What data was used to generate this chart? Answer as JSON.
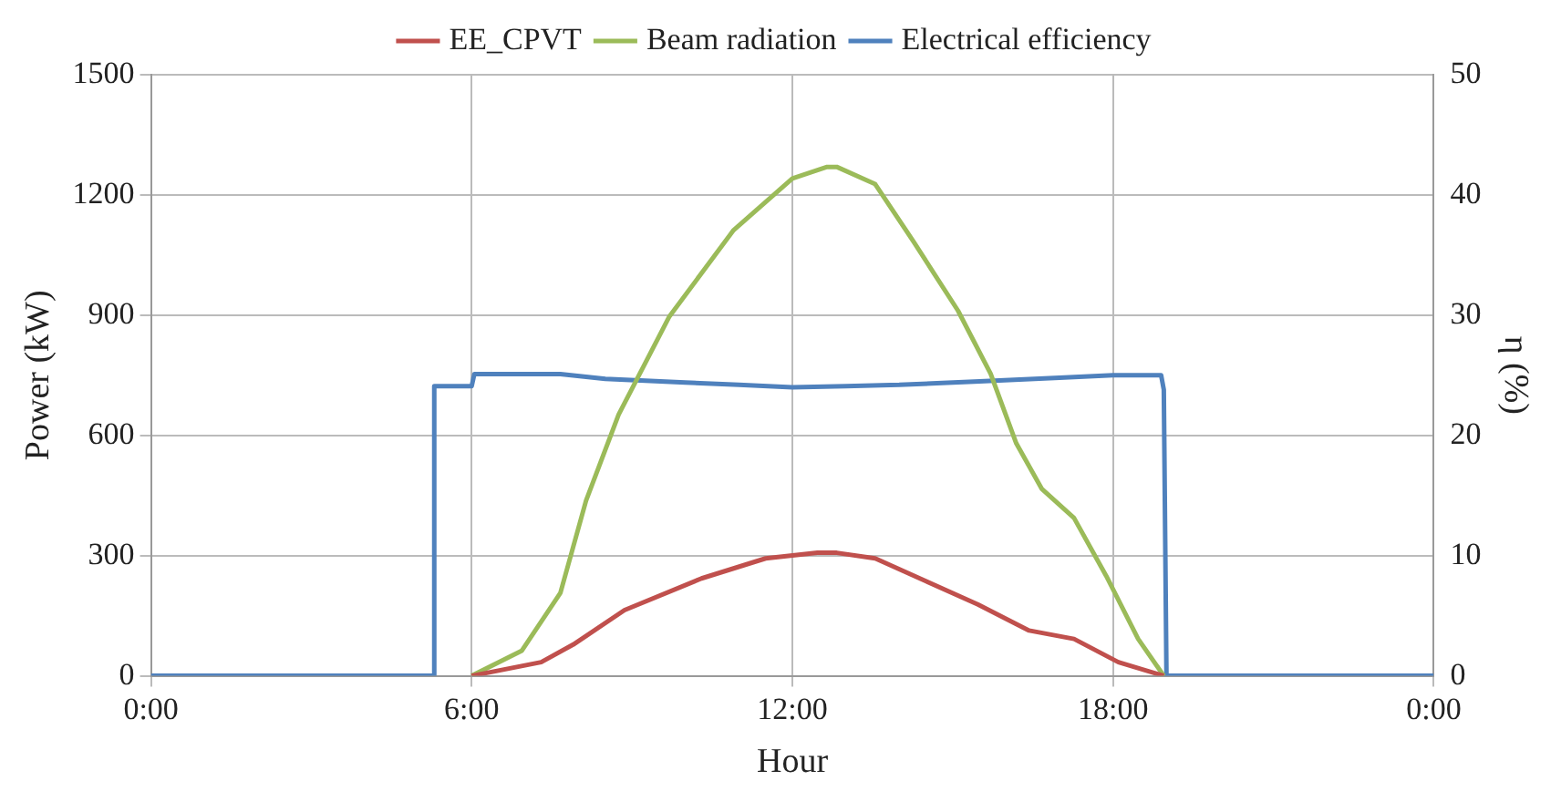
{
  "chart_data": {
    "type": "line",
    "xlabel": "Hour",
    "ylabel": "Power (kW)",
    "y2label": "η (%)",
    "xlim": [
      0,
      24
    ],
    "xticks": [
      {
        "value": 0,
        "label": "0:00"
      },
      {
        "value": 6,
        "label": "6:00"
      },
      {
        "value": 12,
        "label": "12:00"
      },
      {
        "value": 18,
        "label": "18:00"
      },
      {
        "value": 24,
        "label": "0:00"
      }
    ],
    "ylim": [
      0,
      1500
    ],
    "yticks": [
      0,
      300,
      600,
      900,
      1200,
      1500
    ],
    "y2lim": [
      0,
      50
    ],
    "y2ticks": [
      0,
      10,
      20,
      30,
      40,
      50
    ],
    "grid": true,
    "legend": "top",
    "marker": "none",
    "line_style": "solid",
    "series": [
      {
        "name": "EE_CPVT",
        "color": "#c0504d",
        "x": [
          6.0,
          7.3,
          7.9,
          8.86,
          10.3,
          11.5,
          12.47,
          12.83,
          13.55,
          14.5,
          15.47,
          16.43,
          17.27,
          18.1,
          18.95
        ],
        "values": [
          0,
          34,
          78,
          164,
          243,
          293,
          307,
          307,
          293,
          236,
          178,
          113,
          92,
          34,
          0
        ]
      },
      {
        "name": "Beam radiation",
        "color": "#9bbb59",
        "x": [
          6.0,
          6.94,
          7.66,
          8.14,
          8.75,
          9.7,
          10.9,
          12.0,
          12.65,
          12.83,
          13.55,
          14.27,
          15.1,
          15.71,
          16.19,
          16.67,
          17.27,
          17.87,
          18.47,
          18.95
        ],
        "values": [
          0,
          63,
          207,
          437,
          652,
          897,
          1112,
          1241,
          1270,
          1270,
          1227,
          1083,
          911,
          754,
          580,
          466,
          394,
          250,
          92,
          0
        ]
      },
      {
        "name": "Electrical efficiency",
        "color": "#4f81bd",
        "axis": "y2",
        "x": [
          0,
          5.3,
          5.3,
          6.0,
          6.05,
          7.66,
          8.5,
          10.0,
          11.0,
          12.0,
          13.0,
          14.0,
          15.5,
          17.0,
          18.0,
          18.9,
          18.95,
          19.0,
          24
        ],
        "values": [
          0,
          0,
          24.1,
          24.1,
          25.1,
          25.1,
          24.7,
          24.4,
          24.2,
          24.0,
          24.1,
          24.2,
          24.5,
          24.8,
          25.0,
          25.0,
          23.8,
          0,
          0
        ]
      }
    ]
  }
}
